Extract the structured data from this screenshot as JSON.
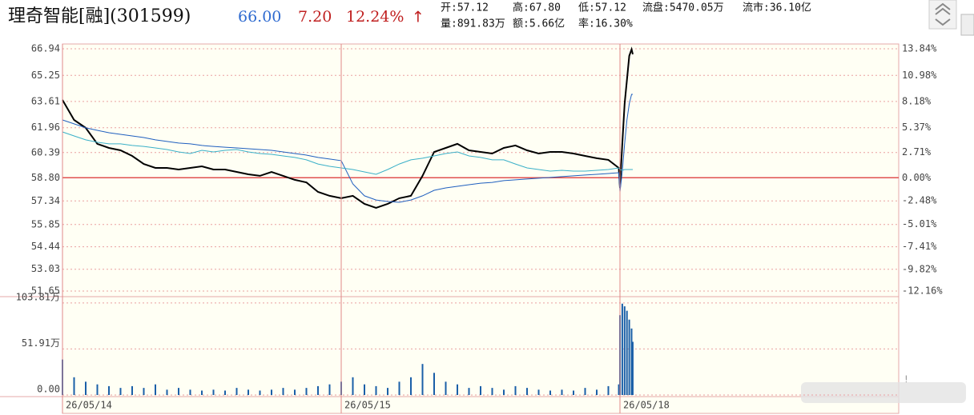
{
  "header": {
    "title": "理奇智能[融](301599)",
    "price": "66.00",
    "change": "7.20",
    "change_pct": "12.24%",
    "arrow": "↑",
    "stats": [
      "开:57.12",
      "高:67.80",
      "低:57.12",
      "流盘:5470.05万",
      "流市:36.10亿",
      "量:891.83万",
      "额:5.66亿",
      "率:16.30%"
    ]
  },
  "chart_data": [
    {
      "type": "line",
      "x": [
        0,
        10,
        20,
        30,
        40,
        50,
        60,
        70,
        80,
        90,
        100,
        110,
        120,
        130,
        140,
        150,
        160,
        170,
        180,
        190,
        200,
        210,
        220,
        230,
        240,
        250,
        260,
        270,
        280,
        290,
        300,
        310,
        320,
        330,
        340,
        350,
        360,
        370,
        380,
        390,
        400,
        410,
        420,
        430,
        440,
        450,
        460,
        470,
        479,
        480,
        482,
        484,
        486,
        488,
        490,
        491
      ],
      "xlim": [
        0,
        720
      ],
      "series": [
        {
          "color": "#000000",
          "values": [
            63.71,
            62.45,
            61.95,
            60.94,
            60.68,
            60.53,
            60.18,
            59.67,
            59.42,
            59.42,
            59.32,
            59.42,
            59.52,
            59.32,
            59.32,
            59.17,
            59.02,
            58.92,
            59.17,
            58.92,
            58.67,
            58.51,
            57.91,
            57.66,
            57.51,
            57.66,
            57.15,
            56.9,
            57.15,
            57.51,
            57.66,
            58.92,
            60.43,
            60.68,
            60.94,
            60.53,
            60.43,
            60.33,
            60.68,
            60.84,
            60.53,
            60.33,
            60.43,
            60.43,
            60.33,
            60.18,
            60.03,
            59.93,
            59.42,
            58.16,
            60.94,
            63.46,
            64.97,
            66.49,
            66.9,
            66.59
          ]
        },
        {
          "color": "#1f5fbf",
          "values": [
            62.45,
            62.2,
            61.95,
            61.79,
            61.64,
            61.54,
            61.44,
            61.34,
            61.19,
            61.09,
            60.99,
            60.94,
            60.84,
            60.78,
            60.73,
            60.68,
            60.63,
            60.58,
            60.53,
            60.43,
            60.33,
            60.23,
            60.08,
            59.98,
            59.88,
            58.41,
            57.66,
            57.4,
            57.3,
            57.25,
            57.4,
            57.66,
            58.01,
            58.16,
            58.26,
            58.36,
            58.46,
            58.51,
            58.62,
            58.67,
            58.72,
            58.77,
            58.82,
            58.87,
            58.92,
            58.97,
            59.02,
            59.07,
            59.12,
            57.91,
            59.17,
            60.94,
            62.45,
            63.46,
            64.06,
            64.06
          ]
        },
        {
          "color": "#3ab0c8",
          "values": [
            61.69,
            61.44,
            61.19,
            61.04,
            60.94,
            60.94,
            60.84,
            60.78,
            60.68,
            60.58,
            60.43,
            60.33,
            60.53,
            60.43,
            60.53,
            60.58,
            60.43,
            60.33,
            60.28,
            60.18,
            60.08,
            59.93,
            59.67,
            59.52,
            59.42,
            59.32,
            59.17,
            59.02,
            59.32,
            59.67,
            59.93,
            60.03,
            60.18,
            60.33,
            60.43,
            60.18,
            60.08,
            59.93,
            59.93,
            59.67,
            59.42,
            59.32,
            59.22,
            59.27,
            59.22,
            59.22,
            59.27,
            59.32,
            59.42,
            59.32,
            59.27,
            59.32,
            59.32,
            59.32,
            59.32,
            59.32
          ]
        }
      ],
      "ylim": [
        51.35,
        67.24
      ],
      "yticks": [
        66.94,
        65.25,
        63.61,
        61.96,
        60.39,
        {
          "value": 58.8,
          "label": "58.80"
        },
        57.34,
        55.85,
        54.44,
        53.03,
        51.65
      ],
      "y2lim": [
        -12.67,
        14.35
      ],
      "y2ticks": [
        {
          "value": 13.84,
          "label": "13.84%"
        },
        {
          "value": 10.98,
          "label": "10.98%"
        },
        {
          "value": 8.18,
          "label": "8.18%"
        },
        {
          "value": 5.37,
          "label": "5.37%"
        },
        {
          "value": 2.71,
          "label": "2.71%"
        },
        {
          "value": 0,
          "label": "0.00%"
        },
        {
          "value": -2.48,
          "label": "-2.48%"
        },
        {
          "value": -5.01,
          "label": "-5.01%"
        },
        {
          "value": -7.41,
          "label": "-7.41%"
        },
        {
          "value": -9.82,
          "label": "-9.82%"
        },
        {
          "value": -12.16,
          "label": "-12.16%"
        }
      ],
      "grid": true
    },
    {
      "type": "bar",
      "x": [
        0,
        10,
        20,
        30,
        40,
        50,
        60,
        70,
        80,
        90,
        100,
        110,
        120,
        130,
        140,
        150,
        160,
        170,
        180,
        190,
        200,
        210,
        220,
        230,
        240,
        250,
        260,
        270,
        280,
        290,
        300,
        310,
        320,
        330,
        340,
        350,
        360,
        370,
        380,
        390,
        400,
        410,
        420,
        430,
        440,
        450,
        460,
        470,
        479,
        480,
        482,
        484,
        486,
        488,
        490,
        491
      ],
      "xlim": [
        0,
        720
      ],
      "values": [
        40,
        20,
        15,
        12,
        10,
        8,
        10,
        8,
        12,
        6,
        8,
        6,
        5,
        6,
        5,
        8,
        6,
        5,
        6,
        8,
        6,
        8,
        10,
        12,
        15,
        20,
        12,
        10,
        8,
        15,
        20,
        35,
        25,
        15,
        12,
        8,
        10,
        8,
        6,
        10,
        8,
        6,
        5,
        6,
        5,
        8,
        6,
        10,
        12,
        90,
        103,
        100,
        95,
        85,
        75,
        60
      ],
      "color": "#1a5fa8",
      "ylim": [
        0,
        110
      ],
      "yticks": [
        {
          "value": 0,
          "label": "0.00"
        },
        {
          "value": 51.91,
          "label": "51.91万"
        },
        {
          "value": 103.81,
          "label": "103.81万"
        }
      ],
      "xticks": [
        {
          "value": 0,
          "label": "26/05/14"
        },
        {
          "value": 240,
          "label": "26/05/15"
        },
        {
          "value": 480,
          "label": "26/05/18"
        }
      ]
    }
  ]
}
